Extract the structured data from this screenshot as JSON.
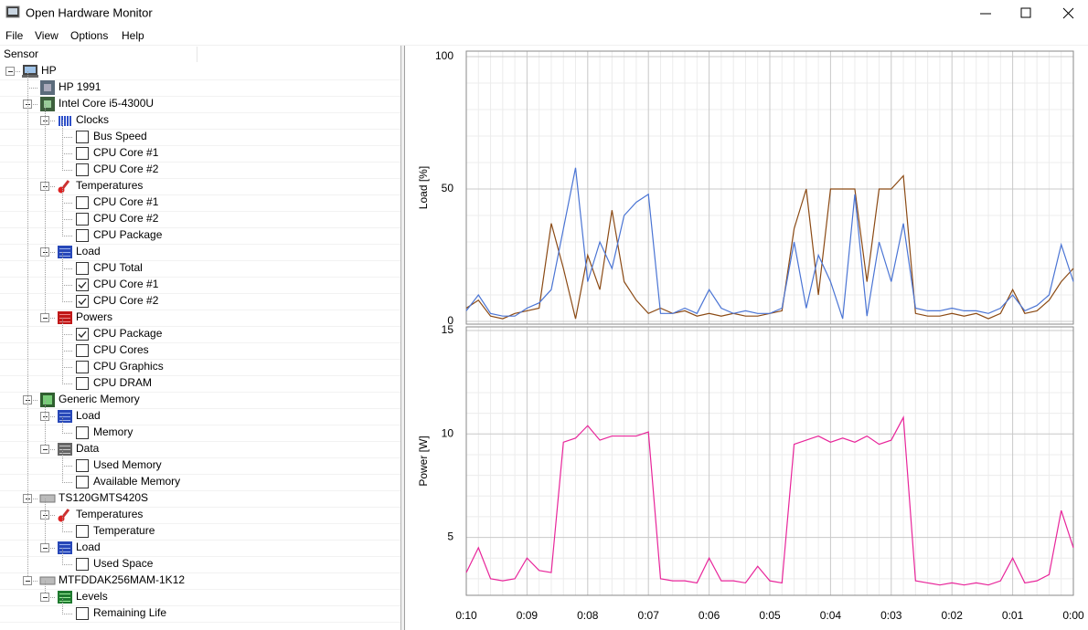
{
  "window": {
    "title": "Open Hardware Monitor"
  },
  "menu": [
    "File",
    "View",
    "Options",
    "Help"
  ],
  "tree": {
    "header": "Sensor",
    "nodes": [
      {
        "label": "HP",
        "level": 0,
        "icon": "computer"
      },
      {
        "label": "HP 1991",
        "level": 1,
        "icon": "board"
      },
      {
        "label": "Intel Core i5-4300U",
        "level": 1,
        "icon": "cpu"
      },
      {
        "label": "Clocks",
        "level": 2,
        "icon": "clock"
      },
      {
        "label": "Bus Speed",
        "level": 3,
        "checked": false
      },
      {
        "label": "CPU Core #1",
        "level": 3,
        "checked": false
      },
      {
        "label": "CPU Core #2",
        "level": 3,
        "checked": false
      },
      {
        "label": "Temperatures",
        "level": 2,
        "icon": "temperature"
      },
      {
        "label": "CPU Core #1",
        "level": 3,
        "checked": false
      },
      {
        "label": "CPU Core #2",
        "level": 3,
        "checked": false
      },
      {
        "label": "CPU Package",
        "level": 3,
        "checked": false
      },
      {
        "label": "Load",
        "level": 2,
        "icon": "load"
      },
      {
        "label": "CPU Total",
        "level": 3,
        "checked": false
      },
      {
        "label": "CPU Core #1",
        "level": 3,
        "checked": true,
        "color": "#a0521e"
      },
      {
        "label": "CPU Core #2",
        "level": 3,
        "checked": true,
        "color": "#3f6fd6"
      },
      {
        "label": "Powers",
        "level": 2,
        "icon": "power"
      },
      {
        "label": "CPU Package",
        "level": 3,
        "checked": true,
        "color": "#e5289b"
      },
      {
        "label": "CPU Cores",
        "level": 3,
        "checked": false
      },
      {
        "label": "CPU Graphics",
        "level": 3,
        "checked": false
      },
      {
        "label": "CPU DRAM",
        "level": 3,
        "checked": false
      },
      {
        "label": "Generic Memory",
        "level": 1,
        "icon": "memory"
      },
      {
        "label": "Load",
        "level": 2,
        "icon": "load"
      },
      {
        "label": "Memory",
        "level": 3,
        "checked": false
      },
      {
        "label": "Data",
        "level": 2,
        "icon": "data"
      },
      {
        "label": "Used Memory",
        "level": 3,
        "checked": false
      },
      {
        "label": "Available Memory",
        "level": 3,
        "checked": false
      },
      {
        "label": "TS120GMTS420S",
        "level": 1,
        "icon": "disk"
      },
      {
        "label": "Temperatures",
        "level": 2,
        "icon": "temperature"
      },
      {
        "label": "Temperature",
        "level": 3,
        "checked": false
      },
      {
        "label": "Load",
        "level": 2,
        "icon": "load"
      },
      {
        "label": "Used Space",
        "level": 3,
        "checked": false
      },
      {
        "label": "MTFDDAK256MAM-1K12",
        "level": 1,
        "icon": "disk"
      },
      {
        "label": "Levels",
        "level": 2,
        "icon": "levels"
      },
      {
        "label": "Remaining Life",
        "level": 3,
        "checked": false
      }
    ]
  },
  "chart_data": [
    {
      "type": "line",
      "ylabel": "Load [%]",
      "x": [
        10,
        9.8,
        9.6,
        9.4,
        9.2,
        9,
        8.8,
        8.6,
        8.4,
        8.2,
        8,
        7.8,
        7.6,
        7.4,
        7.2,
        7,
        6.8,
        6.6,
        6.4,
        6.2,
        6,
        5.8,
        5.6,
        5.4,
        5.2,
        5,
        4.8,
        4.6,
        4.4,
        4.2,
        4,
        3.8,
        3.6,
        3.4,
        3.2,
        3,
        2.8,
        2.6,
        2.4,
        2.2,
        2,
        1.8,
        1.6,
        1.4,
        1.2,
        1,
        0.8,
        0.6,
        0.4,
        0.2,
        0
      ],
      "xlim": [
        10,
        0
      ],
      "ylim": [
        0,
        100
      ],
      "yticks": [
        0,
        50,
        100
      ],
      "grid": true,
      "series": [
        {
          "color": "#8b4a14",
          "values": [
            5,
            8,
            2,
            1,
            3,
            4,
            5,
            37,
            20,
            1,
            25,
            12,
            42,
            15,
            8,
            3,
            5,
            3,
            4,
            2,
            3,
            2,
            3,
            2,
            2,
            3,
            4,
            35,
            50,
            10,
            50,
            50,
            50,
            15,
            50,
            50,
            55,
            3,
            2,
            2,
            3,
            2,
            3,
            1,
            3,
            12,
            3,
            4,
            8,
            15,
            20
          ]
        },
        {
          "color": "#4a74d4",
          "values": [
            4,
            10,
            3,
            2,
            2,
            5,
            7,
            12,
            35,
            58,
            15,
            30,
            20,
            40,
            45,
            48,
            3,
            3,
            5,
            3,
            12,
            5,
            3,
            4,
            3,
            3,
            5,
            30,
            5,
            25,
            15,
            1,
            48,
            2,
            30,
            15,
            37,
            5,
            4,
            4,
            5,
            4,
            4,
            3,
            5,
            10,
            4,
            6,
            10,
            29,
            15
          ]
        }
      ]
    },
    {
      "type": "line",
      "ylabel": "Power [W]",
      "x": [
        10,
        9.8,
        9.6,
        9.4,
        9.2,
        9,
        8.8,
        8.6,
        8.4,
        8.2,
        8,
        7.8,
        7.6,
        7.4,
        7.2,
        7,
        6.8,
        6.6,
        6.4,
        6.2,
        6,
        5.8,
        5.6,
        5.4,
        5.2,
        5,
        4.8,
        4.6,
        4.4,
        4.2,
        4,
        3.8,
        3.6,
        3.4,
        3.2,
        3,
        2.8,
        2.6,
        2.4,
        2.2,
        2,
        1.8,
        1.6,
        1.4,
        1.2,
        1,
        0.8,
        0.6,
        0.4,
        0.2,
        0
      ],
      "xlim": [
        10,
        0
      ],
      "ylim": [
        2.2,
        15
      ],
      "yticks": [
        5,
        10,
        15
      ],
      "grid": true,
      "xticks": [
        {
          "value": 10,
          "label": "0:10"
        },
        {
          "value": 9,
          "label": "0:09"
        },
        {
          "value": 8,
          "label": "0:08"
        },
        {
          "value": 7,
          "label": "0:07"
        },
        {
          "value": 6,
          "label": "0:06"
        },
        {
          "value": 5,
          "label": "0:05"
        },
        {
          "value": 4,
          "label": "0:04"
        },
        {
          "value": 3,
          "label": "0:03"
        },
        {
          "value": 2,
          "label": "0:02"
        },
        {
          "value": 1,
          "label": "0:01"
        },
        {
          "value": 0,
          "label": "0:00"
        }
      ],
      "series": [
        {
          "color": "#e8259a",
          "values": [
            3.3,
            4.5,
            3,
            2.9,
            3,
            4,
            3.4,
            3.3,
            9.6,
            9.8,
            10.4,
            9.7,
            9.9,
            9.9,
            9.9,
            10.1,
            3,
            2.9,
            2.9,
            2.8,
            4,
            2.9,
            2.9,
            2.8,
            3.6,
            2.9,
            2.8,
            9.5,
            9.7,
            9.9,
            9.6,
            9.8,
            9.6,
            9.9,
            9.5,
            9.7,
            10.8,
            2.9,
            2.8,
            2.7,
            2.8,
            2.7,
            2.8,
            2.7,
            2.9,
            4,
            2.8,
            2.9,
            3.2,
            6.3,
            4.5
          ]
        }
      ]
    }
  ]
}
